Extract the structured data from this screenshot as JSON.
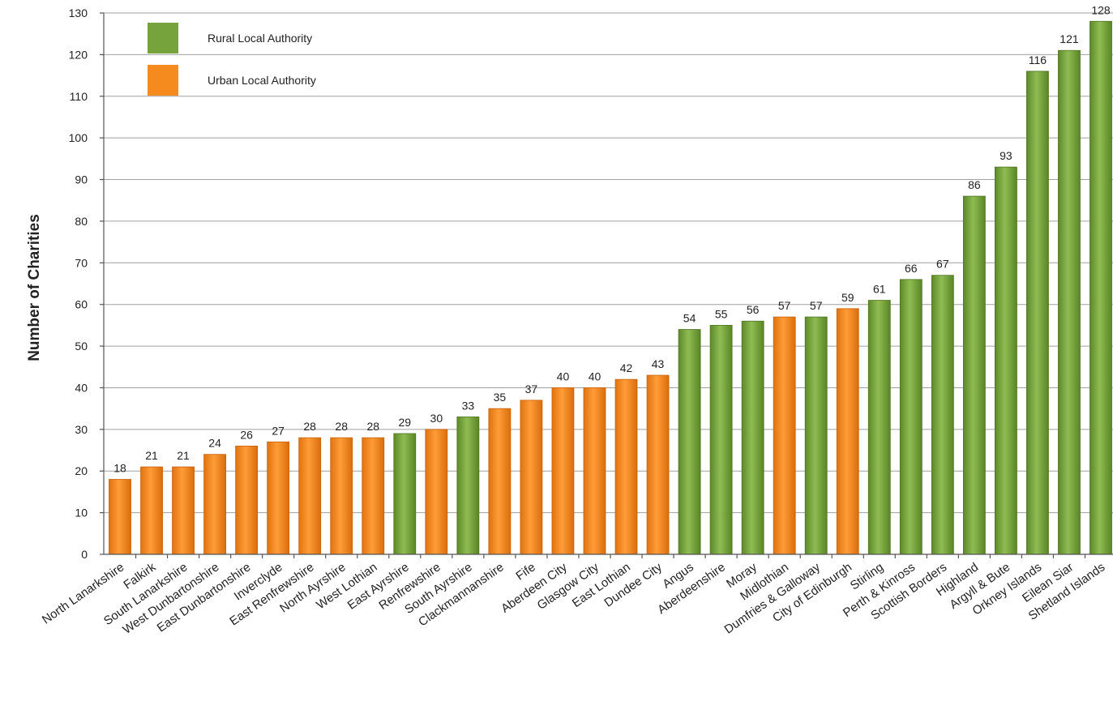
{
  "chart_data": {
    "type": "bar",
    "title": "",
    "xlabel": "",
    "ylabel": "Number of Charities",
    "ylim": [
      0,
      130
    ],
    "yticks": [
      0,
      10,
      20,
      30,
      40,
      50,
      60,
      70,
      80,
      90,
      100,
      110,
      120,
      130
    ],
    "grid": true,
    "legend_position": "top-left",
    "colors": {
      "rural": "#77a33c",
      "urban": "#f58a1f"
    },
    "legend": [
      {
        "key": "rural",
        "label": "Rural Local Authority"
      },
      {
        "key": "urban",
        "label": "Urban Local Authority"
      }
    ],
    "categories": [
      "North Lanarkshire",
      "Falkirk",
      "South Lanarkshire",
      "West Dunbartonshire",
      "East Dunbartonshire",
      "Inverclyde",
      "East Renfrewshire",
      "North Ayrshire",
      "West Lothian",
      "East Ayrshire",
      "Renfrewshire",
      "South Ayrshire",
      "Clackmannanshire",
      "Fife",
      "Aberdeen City",
      "Glasgow City",
      "East Lothian",
      "Dundee City",
      "Angus",
      "Aberdeenshire",
      "Moray",
      "Midlothian",
      "Dumfries & Galloway",
      "City of Edinburgh",
      "Stirling",
      "Perth & Kinross",
      "Scottish Borders",
      "Highland",
      "Argyll & Bute",
      "Orkney Islands",
      "Eilean Siar",
      "Shetland Islands"
    ],
    "values": [
      18,
      21,
      21,
      24,
      26,
      27,
      28,
      28,
      28,
      29,
      30,
      33,
      35,
      37,
      40,
      40,
      42,
      43,
      54,
      55,
      56,
      57,
      57,
      59,
      61,
      66,
      67,
      86,
      93,
      116,
      121,
      128
    ],
    "groups": [
      "urban",
      "urban",
      "urban",
      "urban",
      "urban",
      "urban",
      "urban",
      "urban",
      "urban",
      "rural",
      "urban",
      "rural",
      "urban",
      "urban",
      "urban",
      "urban",
      "urban",
      "urban",
      "rural",
      "rural",
      "rural",
      "urban",
      "rural",
      "urban",
      "rural",
      "rural",
      "rural",
      "rural",
      "rural",
      "rural",
      "rural",
      "rural"
    ]
  }
}
